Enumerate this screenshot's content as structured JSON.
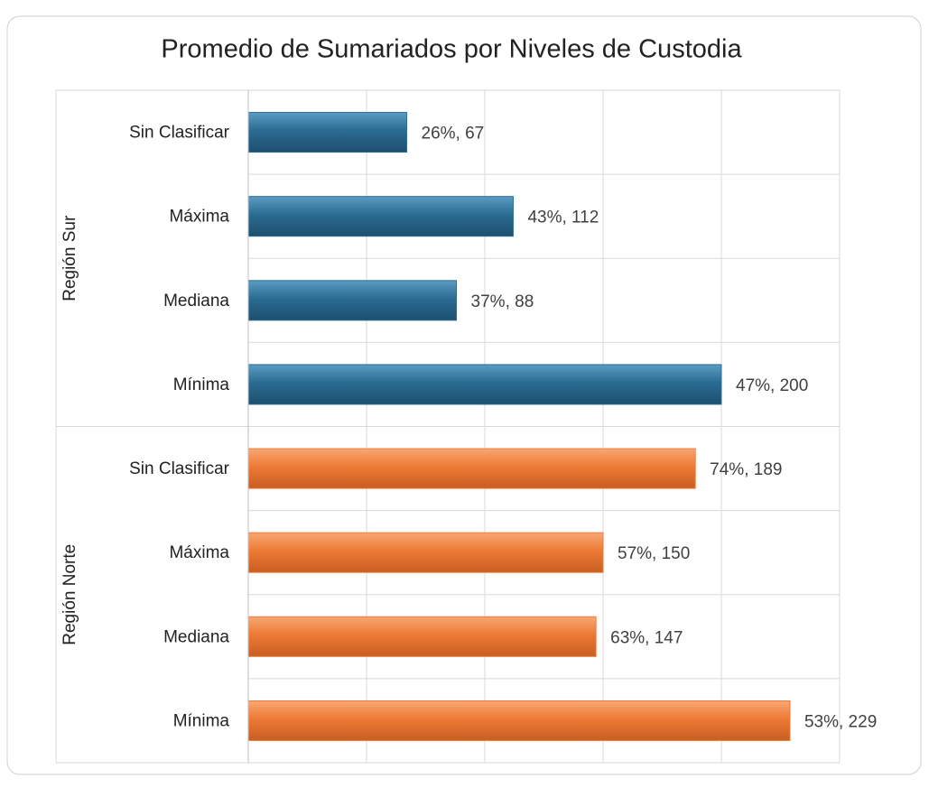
{
  "chart_data": {
    "type": "bar",
    "title": "Promedio de Sumariados por Niveles de Custodia",
    "groups": [
      {
        "name": "Región Sur",
        "color": "#2b6c93",
        "categories": [
          "Sin Clasificar",
          "Máxima",
          "Mediana",
          "Mínima"
        ],
        "values": [
          67,
          112,
          88,
          200
        ],
        "value_labels": [
          "26%, 67",
          "43%, 112",
          "37%, 88",
          "47%, 200"
        ]
      },
      {
        "name": "Región Norte",
        "color": "#ee7a35",
        "categories": [
          "Sin Clasificar",
          "Máxima",
          "Mediana",
          "Mínima"
        ],
        "values": [
          189,
          150,
          147,
          229
        ],
        "value_labels": [
          "74%, 189",
          "57%, 150",
          "63%, 147",
          "53%, 229"
        ]
      }
    ],
    "xlim": [
      0,
      250
    ],
    "xticks": [
      0,
      50,
      100,
      150,
      200,
      250
    ],
    "grid": true
  }
}
